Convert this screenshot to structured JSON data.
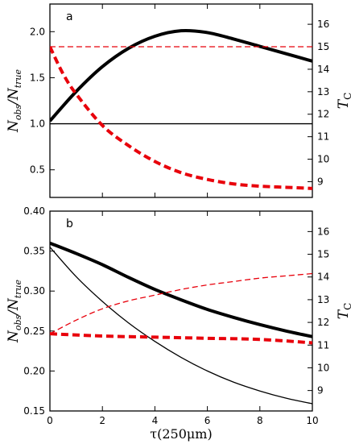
{
  "chart_data": [
    {
      "type": "line",
      "panel_label": "a",
      "ylabel": "N_obs/N_true",
      "y2label": "T_C",
      "ylim": [
        0.2,
        2.3
      ],
      "y2lim": [
        8.3,
        16.9
      ],
      "xlim": [
        0,
        10
      ],
      "yticks": [
        0.5,
        1.0,
        1.5,
        2.0
      ],
      "y2ticks": [
        9,
        10,
        11,
        12,
        13,
        14,
        15,
        16
      ],
      "ytick_labels": [
        "0.5",
        "1.0",
        "1.5",
        "2.0"
      ],
      "y2tick_labels": [
        "9",
        "10",
        "11",
        "12",
        "13",
        "14",
        "15",
        "16"
      ],
      "series": [
        {
          "axis": "left",
          "color": "#000000",
          "style": "solid",
          "weight": "thick",
          "x": [
            0,
            1,
            2,
            3,
            4,
            5,
            6,
            7,
            8,
            9,
            10
          ],
          "y": [
            1.03,
            1.35,
            1.62,
            1.82,
            1.95,
            2.01,
            1.99,
            1.92,
            1.84,
            1.76,
            1.68
          ]
        },
        {
          "axis": "left",
          "color": "#000000",
          "style": "solid",
          "weight": "thin",
          "x": [
            0,
            10
          ],
          "y": [
            1.0,
            1.0
          ]
        },
        {
          "axis": "right",
          "color": "#e8000b",
          "style": "dashed",
          "weight": "thin",
          "x": [
            0,
            10
          ],
          "y": [
            15.0,
            15.0
          ]
        },
        {
          "axis": "right",
          "color": "#e8000b",
          "style": "dashed",
          "weight": "thick",
          "x": [
            0,
            0.5,
            1,
            2,
            3,
            4,
            5,
            6,
            7,
            8,
            9,
            10
          ],
          "y": [
            15.0,
            13.8,
            12.9,
            11.5,
            10.6,
            9.9,
            9.4,
            9.1,
            8.9,
            8.8,
            8.75,
            8.7
          ]
        }
      ]
    },
    {
      "type": "line",
      "panel_label": "b",
      "ylabel": "N_obs/N_true",
      "y2label": "T_C",
      "xlabel": "τ(250μm)",
      "xlim": [
        0,
        10
      ],
      "xticks": [
        0,
        2,
        4,
        6,
        8,
        10
      ],
      "xtick_labels": [
        "0",
        "2",
        "4",
        "6",
        "8",
        "10"
      ],
      "ylim": [
        0.15,
        0.4
      ],
      "y2lim": [
        8.1,
        16.9
      ],
      "yticks": [
        0.15,
        0.2,
        0.25,
        0.3,
        0.35,
        0.4
      ],
      "y2ticks": [
        9,
        10,
        11,
        12,
        13,
        14,
        15,
        16
      ],
      "ytick_labels": [
        "0.15",
        "0.20",
        "0.25",
        "0.30",
        "0.35",
        "0.40"
      ],
      "y2tick_labels": [
        "9",
        "10",
        "11",
        "12",
        "13",
        "14",
        "15",
        "16"
      ],
      "series": [
        {
          "axis": "left",
          "color": "#000000",
          "style": "solid",
          "weight": "thick",
          "x": [
            0,
            1,
            2,
            3,
            4,
            5,
            6,
            7,
            8,
            9,
            10
          ],
          "y": [
            0.36,
            0.347,
            0.333,
            0.317,
            0.302,
            0.289,
            0.277,
            0.267,
            0.258,
            0.25,
            0.243
          ]
        },
        {
          "axis": "left",
          "color": "#000000",
          "style": "solid",
          "weight": "thin",
          "x": [
            0,
            1,
            2,
            3,
            4,
            5,
            6,
            7,
            8,
            9,
            10
          ],
          "y": [
            0.355,
            0.318,
            0.287,
            0.26,
            0.237,
            0.217,
            0.2,
            0.186,
            0.175,
            0.166,
            0.159
          ]
        },
        {
          "axis": "right",
          "color": "#e8000b",
          "style": "dashed",
          "weight": "thin",
          "x": [
            0,
            1,
            2,
            3,
            4,
            5,
            6,
            7,
            8,
            9,
            10
          ],
          "y": [
            11.5,
            12.1,
            12.6,
            12.95,
            13.2,
            13.45,
            13.65,
            13.8,
            13.95,
            14.05,
            14.15
          ]
        },
        {
          "axis": "right",
          "color": "#e8000b",
          "style": "dashed",
          "weight": "thick",
          "x": [
            0,
            2,
            4,
            6,
            8,
            10
          ],
          "y": [
            11.5,
            11.4,
            11.35,
            11.3,
            11.25,
            11.1
          ]
        }
      ]
    }
  ]
}
